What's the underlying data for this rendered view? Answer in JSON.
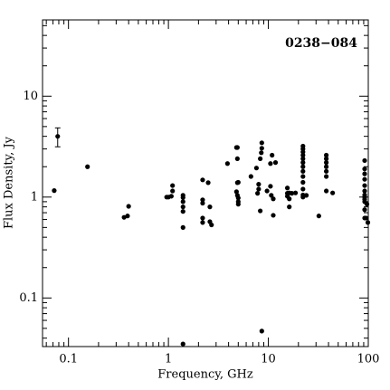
{
  "chart_data": {
    "type": "scatter",
    "title": "0238−084",
    "x_label": "Frequency, GHz",
    "y_label": "Flux Density, Jy",
    "xscale": "log",
    "yscale": "log",
    "xlim": [
      0.055,
      100
    ],
    "ylim": [
      0.033,
      57
    ],
    "xticks": [
      0.1,
      1,
      10,
      100
    ],
    "yticks": [
      0.1,
      1,
      10
    ],
    "xticks_minor": [
      0.06,
      0.07,
      0.08,
      0.09,
      0.2,
      0.3,
      0.4,
      0.5,
      0.6,
      0.7,
      0.8,
      0.9,
      2,
      3,
      4,
      5,
      6,
      7,
      8,
      9,
      20,
      30,
      40,
      50,
      60,
      70,
      80,
      90
    ],
    "yticks_minor": [
      0.04,
      0.05,
      0.06,
      0.07,
      0.08,
      0.09,
      0.2,
      0.3,
      0.4,
      0.5,
      0.6,
      0.7,
      0.8,
      0.9,
      2,
      3,
      4,
      5,
      6,
      7,
      8,
      9,
      20,
      30,
      40,
      50
    ],
    "color": "#000000",
    "x": [
      0.072,
      0.155,
      0.36,
      0.39,
      0.4,
      0.96,
      1.0,
      1.07,
      1.1,
      1.1,
      1.4,
      1.4,
      1.4,
      1.4,
      1.4,
      1.4,
      1.4,
      2.2,
      2.2,
      2.2,
      2.2,
      2.2,
      2.5,
      2.6,
      2.6,
      2.7,
      3.9,
      4.8,
      4.9,
      4.9,
      4.9,
      4.8,
      4.9,
      5.0,
      5.0,
      5.0,
      5.0,
      6.7,
      7.6,
      7.8,
      8.0,
      8.3,
      8.0,
      8.3,
      8.5,
      8.6,
      8.6,
      8.6,
      10.5,
      10.5,
      10.7,
      11.2,
      11.2,
      10.9,
      9.7,
      11.8,
      15.5,
      15.5,
      15.5,
      16.2,
      16.2,
      16.2,
      17.2,
      18.7,
      22.2,
      22.2,
      22.2,
      22.2,
      22.2,
      22.2,
      22.2,
      22.2,
      22.2,
      22.2,
      22.2,
      22.2,
      22.2,
      24,
      32,
      38,
      38,
      38,
      38,
      38,
      38,
      38,
      44,
      92,
      92,
      92,
      92,
      92,
      92,
      92,
      92,
      92,
      92,
      92,
      92,
      95,
      99,
      97
    ],
    "y": [
      1.16,
      2.0,
      0.63,
      0.65,
      0.81,
      1.0,
      1.0,
      1.02,
      1.3,
      1.15,
      1.04,
      0.99,
      0.9,
      0.8,
      0.72,
      0.5,
      0.035,
      1.48,
      0.94,
      0.87,
      0.62,
      0.56,
      1.39,
      0.8,
      0.57,
      0.53,
      2.15,
      3.1,
      3.1,
      2.4,
      1.39,
      1.13,
      1.04,
      0.98,
      0.9,
      0.85,
      1.4,
      1.6,
      1.94,
      1.09,
      1.2,
      2.4,
      1.34,
      0.73,
      2.75,
      3.45,
      3.05,
      0.047,
      2.15,
      1.28,
      1.04,
      0.66,
      0.96,
      2.6,
      1.15,
      2.2,
      1.23,
      1.09,
      1.02,
      1.1,
      0.96,
      0.8,
      1.09,
      1.1,
      3.2,
      3.0,
      2.8,
      2.6,
      2.4,
      2.2,
      2.0,
      1.8,
      1.6,
      1.4,
      1.2,
      1.05,
      1.0,
      1.04,
      0.65,
      2.6,
      2.4,
      2.2,
      2.0,
      1.8,
      1.6,
      1.15,
      1.1,
      2.3,
      1.9,
      1.7,
      1.5,
      1.3,
      1.15,
      1.05,
      1.0,
      0.95,
      0.9,
      0.75,
      0.62,
      0.62,
      0.56,
      0.85
    ],
    "error_points": {
      "x": [
        0.078
      ],
      "y": [
        4.0
      ],
      "errors": [
        0.85
      ]
    }
  }
}
